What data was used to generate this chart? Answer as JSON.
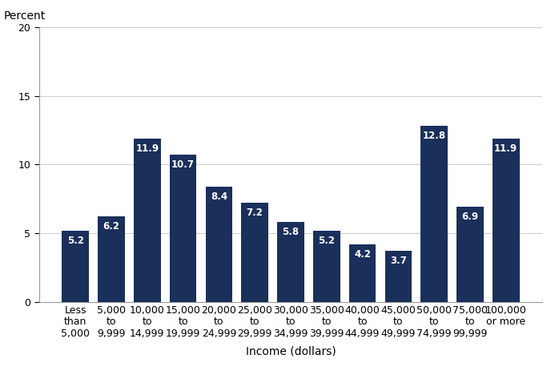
{
  "categories": [
    "Less\nthan\n5,000",
    "5,000\nto\n9,999",
    "10,000\nto\n14,999",
    "15,000\nto\n19,999",
    "20,000\nto\n24,999",
    "25,000\nto\n29,999",
    "30,000\nto\n34,999",
    "35,000\nto\n39,999",
    "40,000\nto\n44,999",
    "45,000\nto\n49,999",
    "50,000\nto\n74,999",
    "75,000\nto\n99,999",
    "100,000\nor more"
  ],
  "values": [
    5.2,
    6.2,
    11.9,
    10.7,
    8.4,
    7.2,
    5.8,
    5.2,
    4.2,
    3.7,
    12.8,
    6.9,
    11.9
  ],
  "bar_color": "#1a2f5a",
  "label_color": "#ffffff",
  "percent_label": "Percent",
  "xlabel": "Income (dollars)",
  "ylim": [
    0,
    20
  ],
  "yticks": [
    0,
    5,
    10,
    15,
    20
  ],
  "bar_label_fontsize": 8.5,
  "axis_label_fontsize": 10,
  "tick_label_fontsize": 9,
  "percent_fontsize": 10,
  "background_color": "#ffffff",
  "grid_color": "#cccccc"
}
